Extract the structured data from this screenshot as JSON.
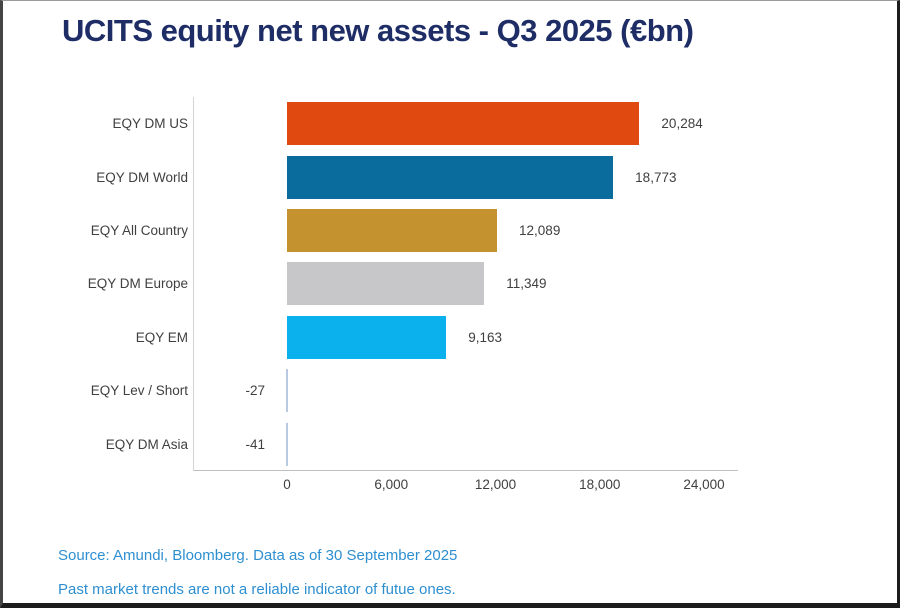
{
  "title": "UCITS equity net new assets - Q3 2025 (€bn)",
  "footer": {
    "source_line": "Source: Amundi, Bloomberg. Data as of 30 September 2025",
    "disclaimer_line": "Past market trends are not a reliable indicator of futue ones."
  },
  "colors": {
    "title_navy": "#1e2d66",
    "footer_blue": "#2e8fd0",
    "axis_line": "#bfbfbf",
    "plot_border": "#d4d4d4",
    "label_gray": "#404040"
  },
  "chart_data": {
    "type": "bar",
    "orientation": "horizontal",
    "title": "UCITS equity net new assets - Q3 2025 (€bn)",
    "categories": [
      "EQY DM US",
      "EQY DM World",
      "EQY All Country",
      "EQY DM Europe",
      "EQY EM",
      "EQY Lev / Short",
      "EQY DM Asia"
    ],
    "values": [
      20284,
      18773,
      12089,
      11349,
      9163,
      -27,
      -41
    ],
    "value_labels": [
      "20,284",
      "18,773",
      "12,089",
      "11,349",
      "9,163",
      "-27",
      "-41"
    ],
    "bar_colors": [
      "#e04a11",
      "#0a6c9d",
      "#c4922e",
      "#c7c7c9",
      "#0ab1ec",
      "#b9c9e0",
      "#b9c9e0"
    ],
    "negative_stub_color": "#b9c9e0",
    "xlabel": "",
    "ylabel": "",
    "xlim": [
      0,
      24000
    ],
    "xticks": [
      0,
      6000,
      12000,
      18000,
      24000
    ],
    "xtick_labels": [
      "0",
      "6,000",
      "12,000",
      "18,000",
      "24,000"
    ],
    "grid": false,
    "legend": false
  }
}
